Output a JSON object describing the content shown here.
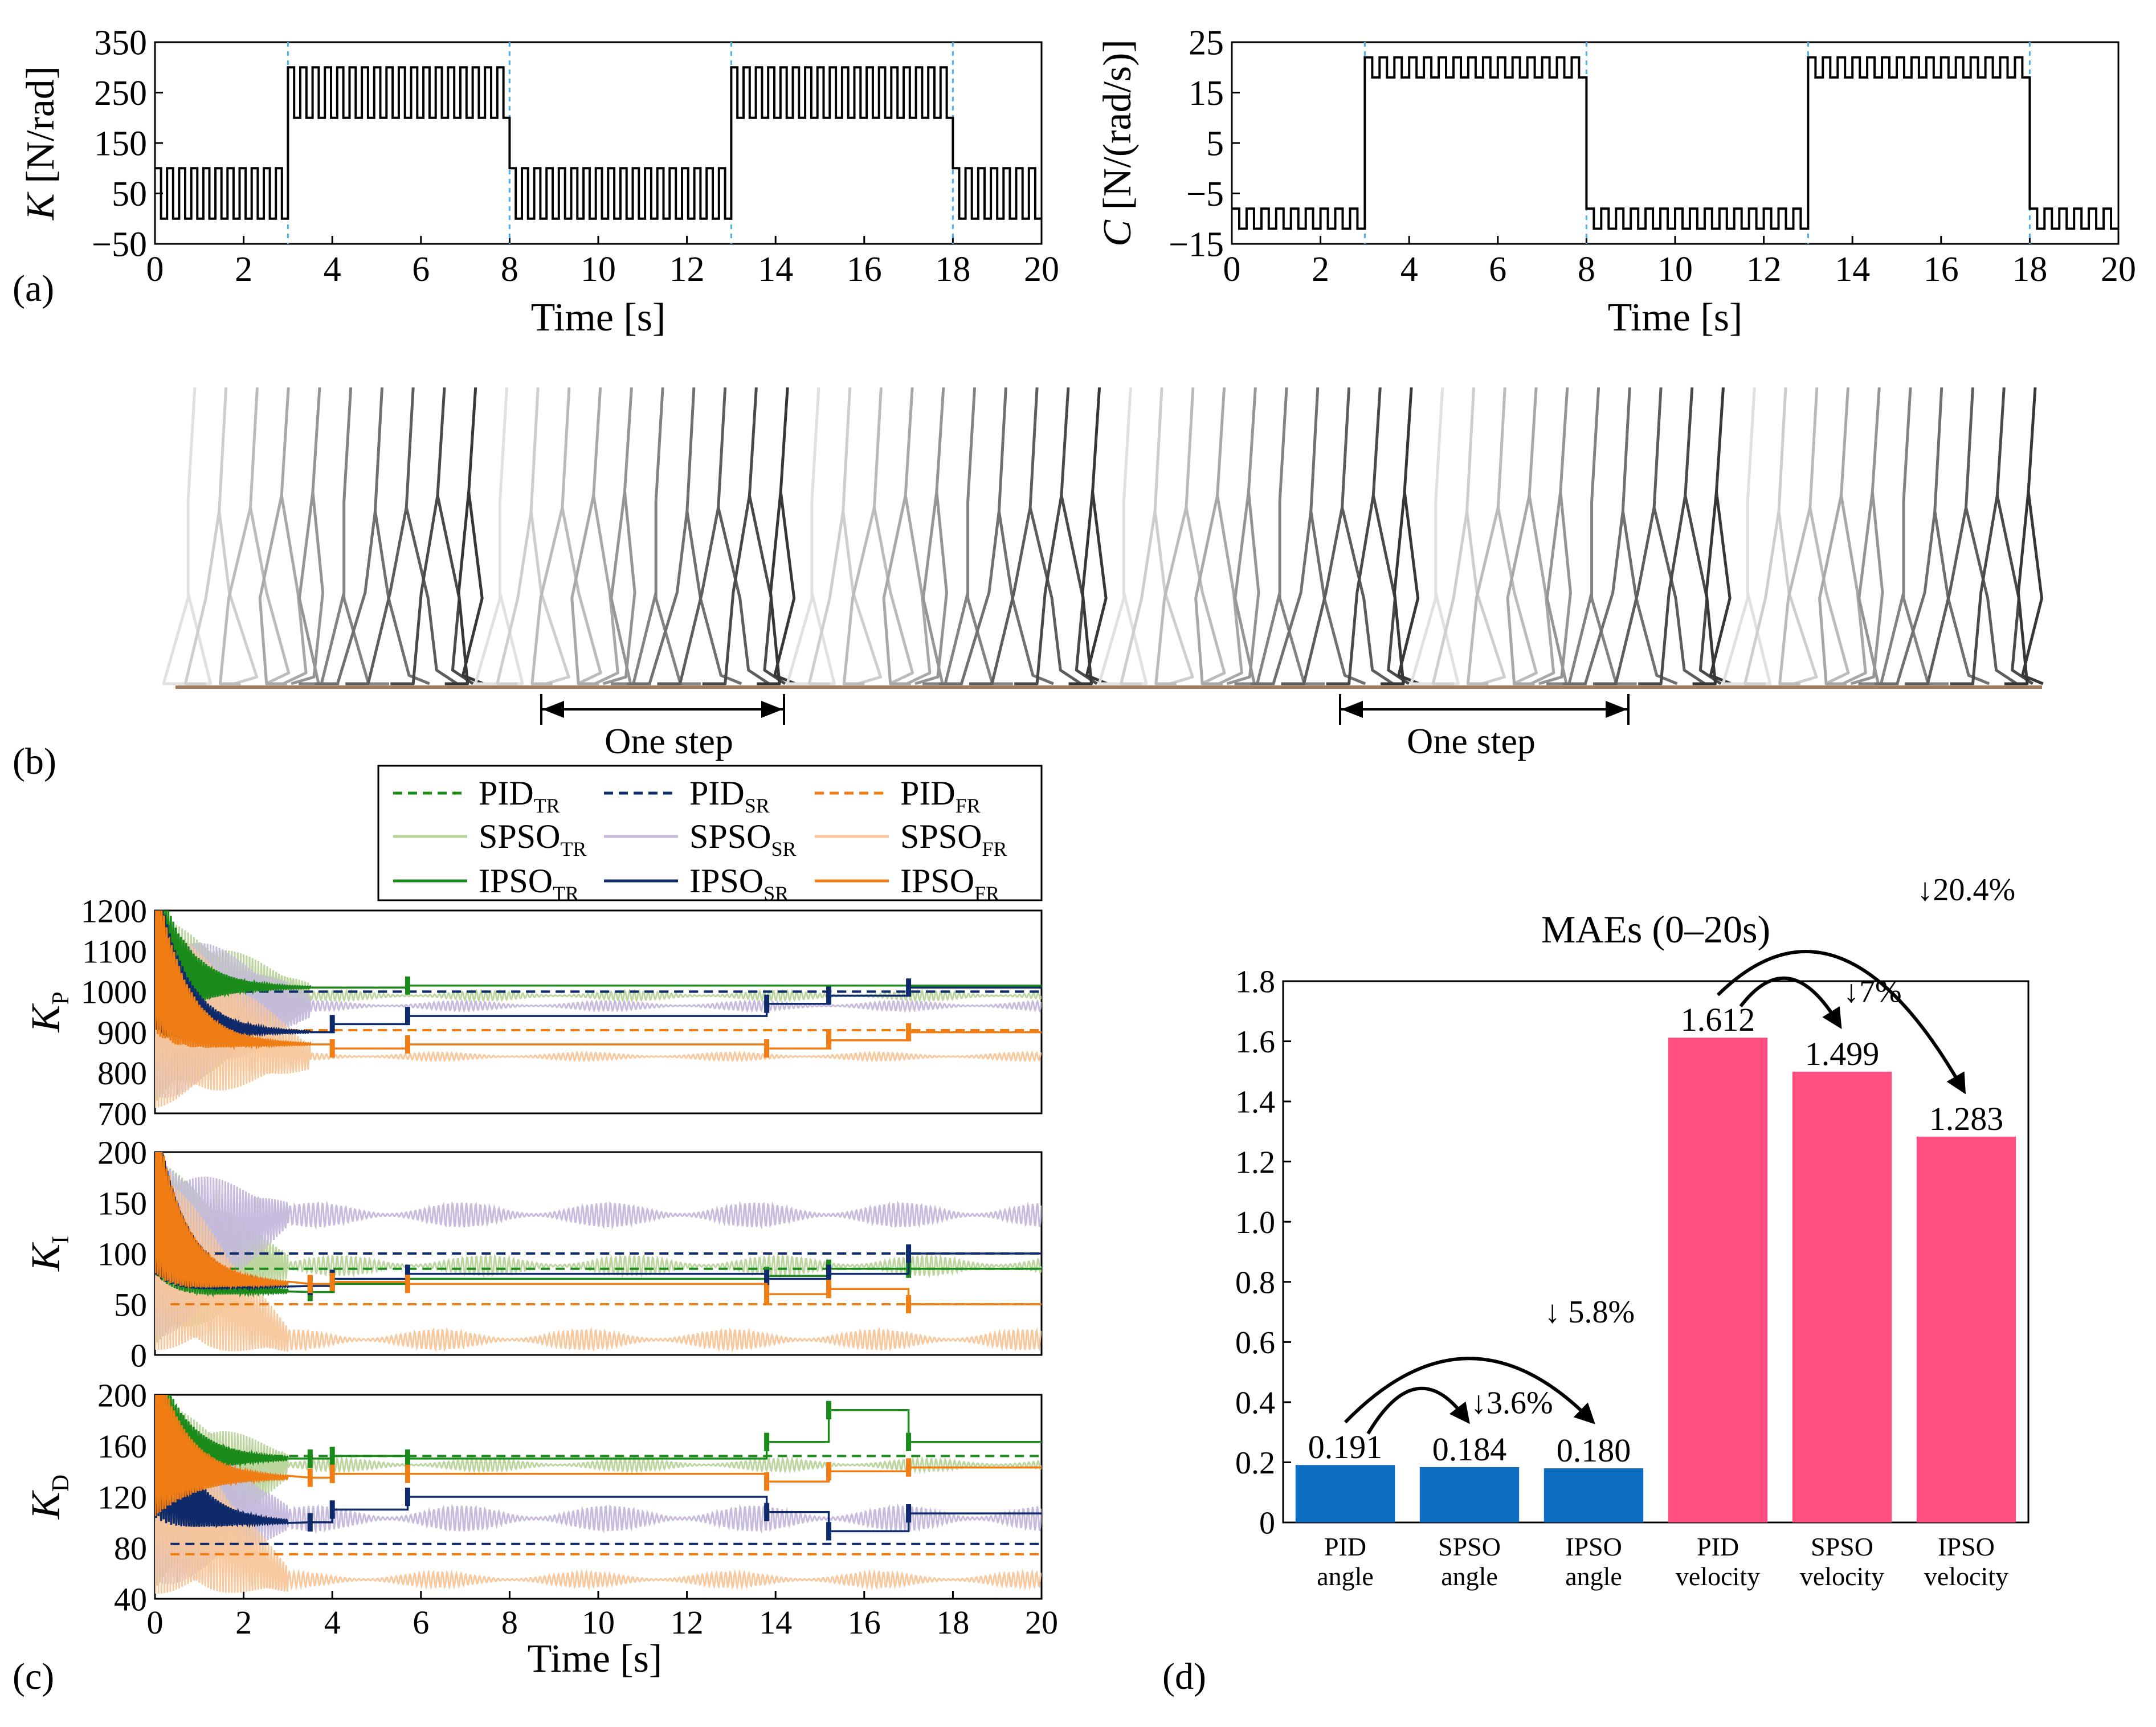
{
  "panel_labels": {
    "a": "(a)",
    "b": "(b)",
    "c": "(c)",
    "d": "(d)"
  },
  "colors": {
    "tr": "#1a8a1a",
    "sr": "#0e2a6b",
    "fr": "#f07c14",
    "tr_light": "#b9d49a",
    "sr_light": "#c4b8dc",
    "fr_light": "#f8c69a",
    "dash_grid": "#4ab0e8",
    "bar_blue": "#0e6fc2",
    "bar_pink": "#ff4f80",
    "ground": "#a07a5a"
  },
  "chart_data": [
    {
      "id": "stiffness",
      "type": "line",
      "xlabel": "Time [s]",
      "ylabel_italic": "K",
      "ylabel_unit": " [N/rad]",
      "xlim": [
        0,
        20
      ],
      "ylim": [
        -50,
        350
      ],
      "xticks": [
        0,
        2,
        4,
        6,
        8,
        10,
        12,
        14,
        16,
        18,
        20
      ],
      "yticks": [
        -50,
        50,
        150,
        250,
        350
      ],
      "phase_switch_times": [
        3,
        8,
        13,
        18
      ],
      "phases": [
        {
          "t0": 0,
          "t1": 3,
          "low": 0,
          "high": 100,
          "cycles": 11
        },
        {
          "t0": 3,
          "t1": 8,
          "low": 200,
          "high": 300,
          "cycles": 18
        },
        {
          "t0": 8,
          "t1": 13,
          "low": 0,
          "high": 100,
          "cycles": 18
        },
        {
          "t0": 13,
          "t1": 18,
          "low": 200,
          "high": 300,
          "cycles": 18
        },
        {
          "t0": 18,
          "t1": 20,
          "low": 0,
          "high": 100,
          "cycles": 7
        }
      ]
    },
    {
      "id": "damping",
      "type": "line",
      "xlabel": "Time [s]",
      "ylabel_italic": "C",
      "ylabel_unit": " [N/(rad/s)]",
      "xlim": [
        0,
        20
      ],
      "ylim": [
        -15,
        25
      ],
      "xticks": [
        0,
        2,
        4,
        6,
        8,
        10,
        12,
        14,
        16,
        18,
        20
      ],
      "yticks": [
        -15,
        -5,
        5,
        15,
        25
      ],
      "phase_switch_times": [
        3,
        8,
        13,
        18
      ],
      "phases": [
        {
          "t0": 0,
          "t1": 3,
          "low": -12,
          "high": -8,
          "cycles": 9
        },
        {
          "t0": 3,
          "t1": 8,
          "low": 18,
          "high": 22,
          "cycles": 15
        },
        {
          "t0": 8,
          "t1": 13,
          "low": -12,
          "high": -8,
          "cycles": 15
        },
        {
          "t0": 13,
          "t1": 18,
          "low": 18,
          "high": 22,
          "cycles": 15
        },
        {
          "t0": 18,
          "t1": 20,
          "low": -12,
          "high": -8,
          "cycles": 6
        }
      ]
    },
    {
      "id": "kp",
      "type": "line",
      "xlim": [
        0,
        20
      ],
      "ylim": [
        700,
        1200
      ],
      "yticks": [
        700,
        800,
        900,
        1000,
        1100,
        1200
      ],
      "ylabel_base": "K",
      "ylabel_sub": "P",
      "settle_time": 3.5,
      "series": [
        {
          "name": "PID_TR",
          "style": "dashed",
          "value": 1000
        },
        {
          "name": "PID_SR",
          "style": "dashed",
          "value": 1000
        },
        {
          "name": "PID_FR",
          "style": "dashed",
          "value": 905
        },
        {
          "name": "SPSO_TR",
          "style": "light",
          "value": 990,
          "amp": 12
        },
        {
          "name": "SPSO_SR",
          "style": "light",
          "value": 965,
          "amp": 12
        },
        {
          "name": "SPSO_FR",
          "style": "light",
          "value": 840,
          "amp": 10
        },
        {
          "name": "IPSO_TR",
          "style": "solid",
          "steps": [
            [
              0,
              1000
            ],
            [
              3.5,
              1010
            ],
            [
              5.7,
              1015
            ],
            [
              20,
              1015
            ]
          ]
        },
        {
          "name": "IPSO_SR",
          "style": "solid",
          "steps": [
            [
              0,
              900
            ],
            [
              3.5,
              900
            ],
            [
              4.0,
              920
            ],
            [
              5.7,
              940
            ],
            [
              13.8,
              970
            ],
            [
              15.2,
              990
            ],
            [
              17,
              1010
            ],
            [
              20,
              1010
            ]
          ]
        },
        {
          "name": "IPSO_FR",
          "style": "solid",
          "steps": [
            [
              0,
              870
            ],
            [
              3.5,
              870
            ],
            [
              4.0,
              860
            ],
            [
              5.7,
              870
            ],
            [
              13.8,
              860
            ],
            [
              15.2,
              880
            ],
            [
              17,
              900
            ],
            [
              20,
              900
            ]
          ]
        }
      ]
    },
    {
      "id": "ki",
      "type": "line",
      "xlim": [
        0,
        20
      ],
      "ylim": [
        0,
        200
      ],
      "yticks": [
        0,
        50,
        100,
        150,
        200
      ],
      "ylabel_base": "K",
      "ylabel_sub": "I",
      "settle_time": 3.0,
      "series": [
        {
          "name": "PID_TR",
          "style": "dashed",
          "value": 85
        },
        {
          "name": "PID_SR",
          "style": "dashed",
          "value": 100
        },
        {
          "name": "PID_FR",
          "style": "dashed",
          "value": 50
        },
        {
          "name": "SPSO_TR",
          "style": "light",
          "value": 88,
          "amp": 10
        },
        {
          "name": "SPSO_SR",
          "style": "light",
          "value": 138,
          "amp": 12
        },
        {
          "name": "SPSO_FR",
          "style": "light",
          "value": 15,
          "amp": 10
        },
        {
          "name": "IPSO_TR",
          "style": "solid",
          "steps": [
            [
              0,
              60
            ],
            [
              3.5,
              62
            ],
            [
              4.0,
              70
            ],
            [
              5.7,
              75
            ],
            [
              13.8,
              78
            ],
            [
              15.2,
              85
            ],
            [
              17,
              85
            ],
            [
              20,
              85
            ]
          ]
        },
        {
          "name": "IPSO_SR",
          "style": "solid",
          "steps": [
            [
              0,
              62
            ],
            [
              3.5,
              68
            ],
            [
              4.0,
              75
            ],
            [
              5.7,
              80
            ],
            [
              13.8,
              75
            ],
            [
              15.2,
              80
            ],
            [
              17,
              100
            ],
            [
              20,
              100
            ]
          ]
        },
        {
          "name": "IPSO_FR",
          "style": "solid",
          "steps": [
            [
              0,
              62
            ],
            [
              3.5,
              70
            ],
            [
              4.0,
              72
            ],
            [
              5.7,
              70
            ],
            [
              13.8,
              60
            ],
            [
              15.2,
              65
            ],
            [
              17,
              50
            ],
            [
              20,
              50
            ]
          ]
        }
      ]
    },
    {
      "id": "kd",
      "type": "line",
      "xlim": [
        0,
        20
      ],
      "ylim": [
        40,
        200
      ],
      "yticks": [
        40,
        80,
        120,
        160,
        200
      ],
      "ylabel_base": "K",
      "ylabel_sub": "D",
      "settle_time": 3.0,
      "series": [
        {
          "name": "PID_TR",
          "style": "dashed",
          "value": 152
        },
        {
          "name": "PID_SR",
          "style": "dashed",
          "value": 83
        },
        {
          "name": "PID_FR",
          "style": "dashed",
          "value": 75
        },
        {
          "name": "SPSO_TR",
          "style": "light",
          "value": 145,
          "amp": 5
        },
        {
          "name": "SPSO_SR",
          "style": "light",
          "value": 103,
          "amp": 10
        },
        {
          "name": "SPSO_FR",
          "style": "light",
          "value": 55,
          "amp": 6
        },
        {
          "name": "IPSO_TR",
          "style": "solid",
          "steps": [
            [
              0,
              162
            ],
            [
              3.5,
              150
            ],
            [
              4.0,
              152
            ],
            [
              5.7,
              150
            ],
            [
              13.8,
              163
            ],
            [
              15.2,
              188
            ],
            [
              17,
              163
            ],
            [
              20,
              163
            ]
          ]
        },
        {
          "name": "IPSO_SR",
          "style": "solid",
          "steps": [
            [
              0,
              88
            ],
            [
              3.5,
              100
            ],
            [
              4.0,
              110
            ],
            [
              5.7,
              120
            ],
            [
              13.8,
              108
            ],
            [
              15.2,
              93
            ],
            [
              17,
              107
            ],
            [
              20,
              107
            ]
          ]
        },
        {
          "name": "IPSO_FR",
          "style": "solid",
          "steps": [
            [
              0,
              135
            ],
            [
              3.5,
              135
            ],
            [
              4.0,
              138
            ],
            [
              5.7,
              138
            ],
            [
              13.8,
              132
            ],
            [
              15.2,
              140
            ],
            [
              17,
              143
            ],
            [
              20,
              143
            ]
          ]
        }
      ]
    },
    {
      "id": "mae",
      "type": "bar",
      "title": "MAEs (0–20s)",
      "ylim": [
        0,
        1.8
      ],
      "yticks": [
        "0",
        "0.2",
        "0.4",
        "0.6",
        "0.8",
        "1.0",
        "1.2",
        "1.4",
        "1.6",
        "1.8"
      ],
      "categories": [
        [
          "PID",
          "angle"
        ],
        [
          "SPSO",
          "angle"
        ],
        [
          "IPSO",
          "angle"
        ],
        [
          "PID",
          "velocity"
        ],
        [
          "SPSO",
          "velocity"
        ],
        [
          "IPSO",
          "velocity"
        ]
      ],
      "values": [
        0.191,
        0.184,
        0.18,
        1.612,
        1.499,
        1.283
      ],
      "value_labels": [
        "0.191",
        "0.184",
        "0.180",
        "1.612",
        "1.499",
        "1.283"
      ],
      "annotations": [
        {
          "from": 0,
          "to": 1,
          "text": "↓3.6%"
        },
        {
          "from": 0,
          "to": 2,
          "text": "↓ 5.8%"
        },
        {
          "from": 3,
          "to": 4,
          "text": "↓7%"
        },
        {
          "from": 3,
          "to": 5,
          "text": "↓20.4%"
        }
      ]
    }
  ],
  "time_axis": {
    "label": "Time [s]",
    "ticks": [
      0,
      2,
      4,
      6,
      8,
      10,
      12,
      14,
      16,
      18,
      20
    ]
  },
  "legend": {
    "entries": [
      {
        "base": "PID",
        "sub": "TR",
        "color_key": "tr",
        "style": "dashed"
      },
      {
        "base": "PID",
        "sub": "SR",
        "color_key": "sr",
        "style": "dashed"
      },
      {
        "base": "PID",
        "sub": "FR",
        "color_key": "fr",
        "style": "dashed"
      },
      {
        "base": "SPSO",
        "sub": "TR",
        "color_key": "tr_light",
        "style": "solid"
      },
      {
        "base": "SPSO",
        "sub": "SR",
        "color_key": "sr_light",
        "style": "solid"
      },
      {
        "base": "SPSO",
        "sub": "FR",
        "color_key": "fr_light",
        "style": "solid"
      },
      {
        "base": "IPSO",
        "sub": "TR",
        "color_key": "tr",
        "style": "solid"
      },
      {
        "base": "IPSO",
        "sub": "SR",
        "color_key": "sr",
        "style": "solid"
      },
      {
        "base": "IPSO",
        "sub": "FR",
        "color_key": "fr",
        "style": "solid"
      }
    ]
  },
  "gait": {
    "step_label_1": "One step",
    "step_label_2": "One step",
    "frames": 60
  }
}
